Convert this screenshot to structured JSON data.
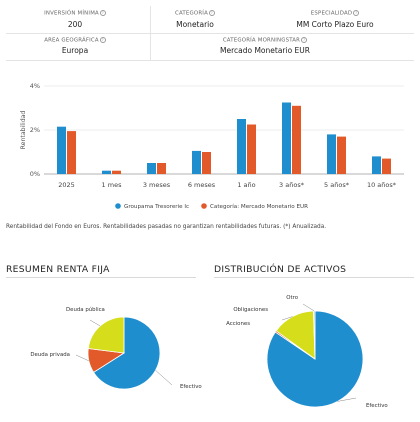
{
  "fund_info": {
    "row1": [
      {
        "label": "INVERSIÓN MÍNIMA",
        "value": "200",
        "help_icon": "question-circle-icon"
      },
      {
        "label": "CATEGORÍA",
        "value": "Monetario",
        "help_icon": "question-circle-icon"
      },
      {
        "label": "ESPECIALIDAD",
        "value": "MM Corto Plazo Euro",
        "help_icon": "question-circle-icon"
      }
    ],
    "row2": [
      {
        "label": "AREA GEOGRÁFICA",
        "value": "Europa",
        "help_icon": "question-circle-icon"
      },
      {
        "label": "CATEGORÍA MORNINGSTAR",
        "value": "Mercado Monetario EUR",
        "help_icon": "question-circle-icon"
      }
    ]
  },
  "footnote": "Rentabilidad del Fondo en Euros. Rentabilidades pasadas no garantizan rentabilidades futuras. (*) Anualizada.",
  "sections": {
    "fixed_income_title": "RESUMEN RENTA FIJA",
    "assets_title": "DISTRIBUCIÓN DE ACTIVOS"
  },
  "chart_data": [
    {
      "type": "bar",
      "ylabel": "Rentabilidad",
      "ylim": [
        0,
        4
      ],
      "yticks": [
        "0%",
        "2%",
        "4%"
      ],
      "grid": true,
      "legend_position": "bottom",
      "categories": [
        "2025",
        "1 mes",
        "3 meses",
        "6 meses",
        "1 año",
        "3 años*",
        "5 años*",
        "10 años*"
      ],
      "series": [
        {
          "name": "Groupama Tresorerie Ic",
          "color": "#1f8ecf",
          "values": [
            2.15,
            0.15,
            0.5,
            1.05,
            2.5,
            3.25,
            1.8,
            0.8
          ]
        },
        {
          "name": "Categoría: Mercado Monetario EUR",
          "color": "#e2592a",
          "values": [
            1.95,
            0.15,
            0.5,
            1.0,
            2.25,
            3.1,
            1.7,
            0.7
          ]
        }
      ]
    },
    {
      "type": "pie",
      "labels": [
        "Efectivo",
        "Deuda privada",
        "Deuda pública"
      ],
      "values": [
        66,
        11,
        23
      ],
      "colors": [
        "#1f8ecf",
        "#e2592a",
        "#d6de1c"
      ]
    },
    {
      "type": "pie",
      "labels": [
        "Efectivo",
        "Acciones",
        "Obligaciones",
        "Otro"
      ],
      "values": [
        84.5,
        0.5,
        14.5,
        0.5
      ],
      "colors": [
        "#1f8ecf",
        "#e2592a",
        "#d6de1c",
        "#a8c8e8"
      ]
    }
  ]
}
